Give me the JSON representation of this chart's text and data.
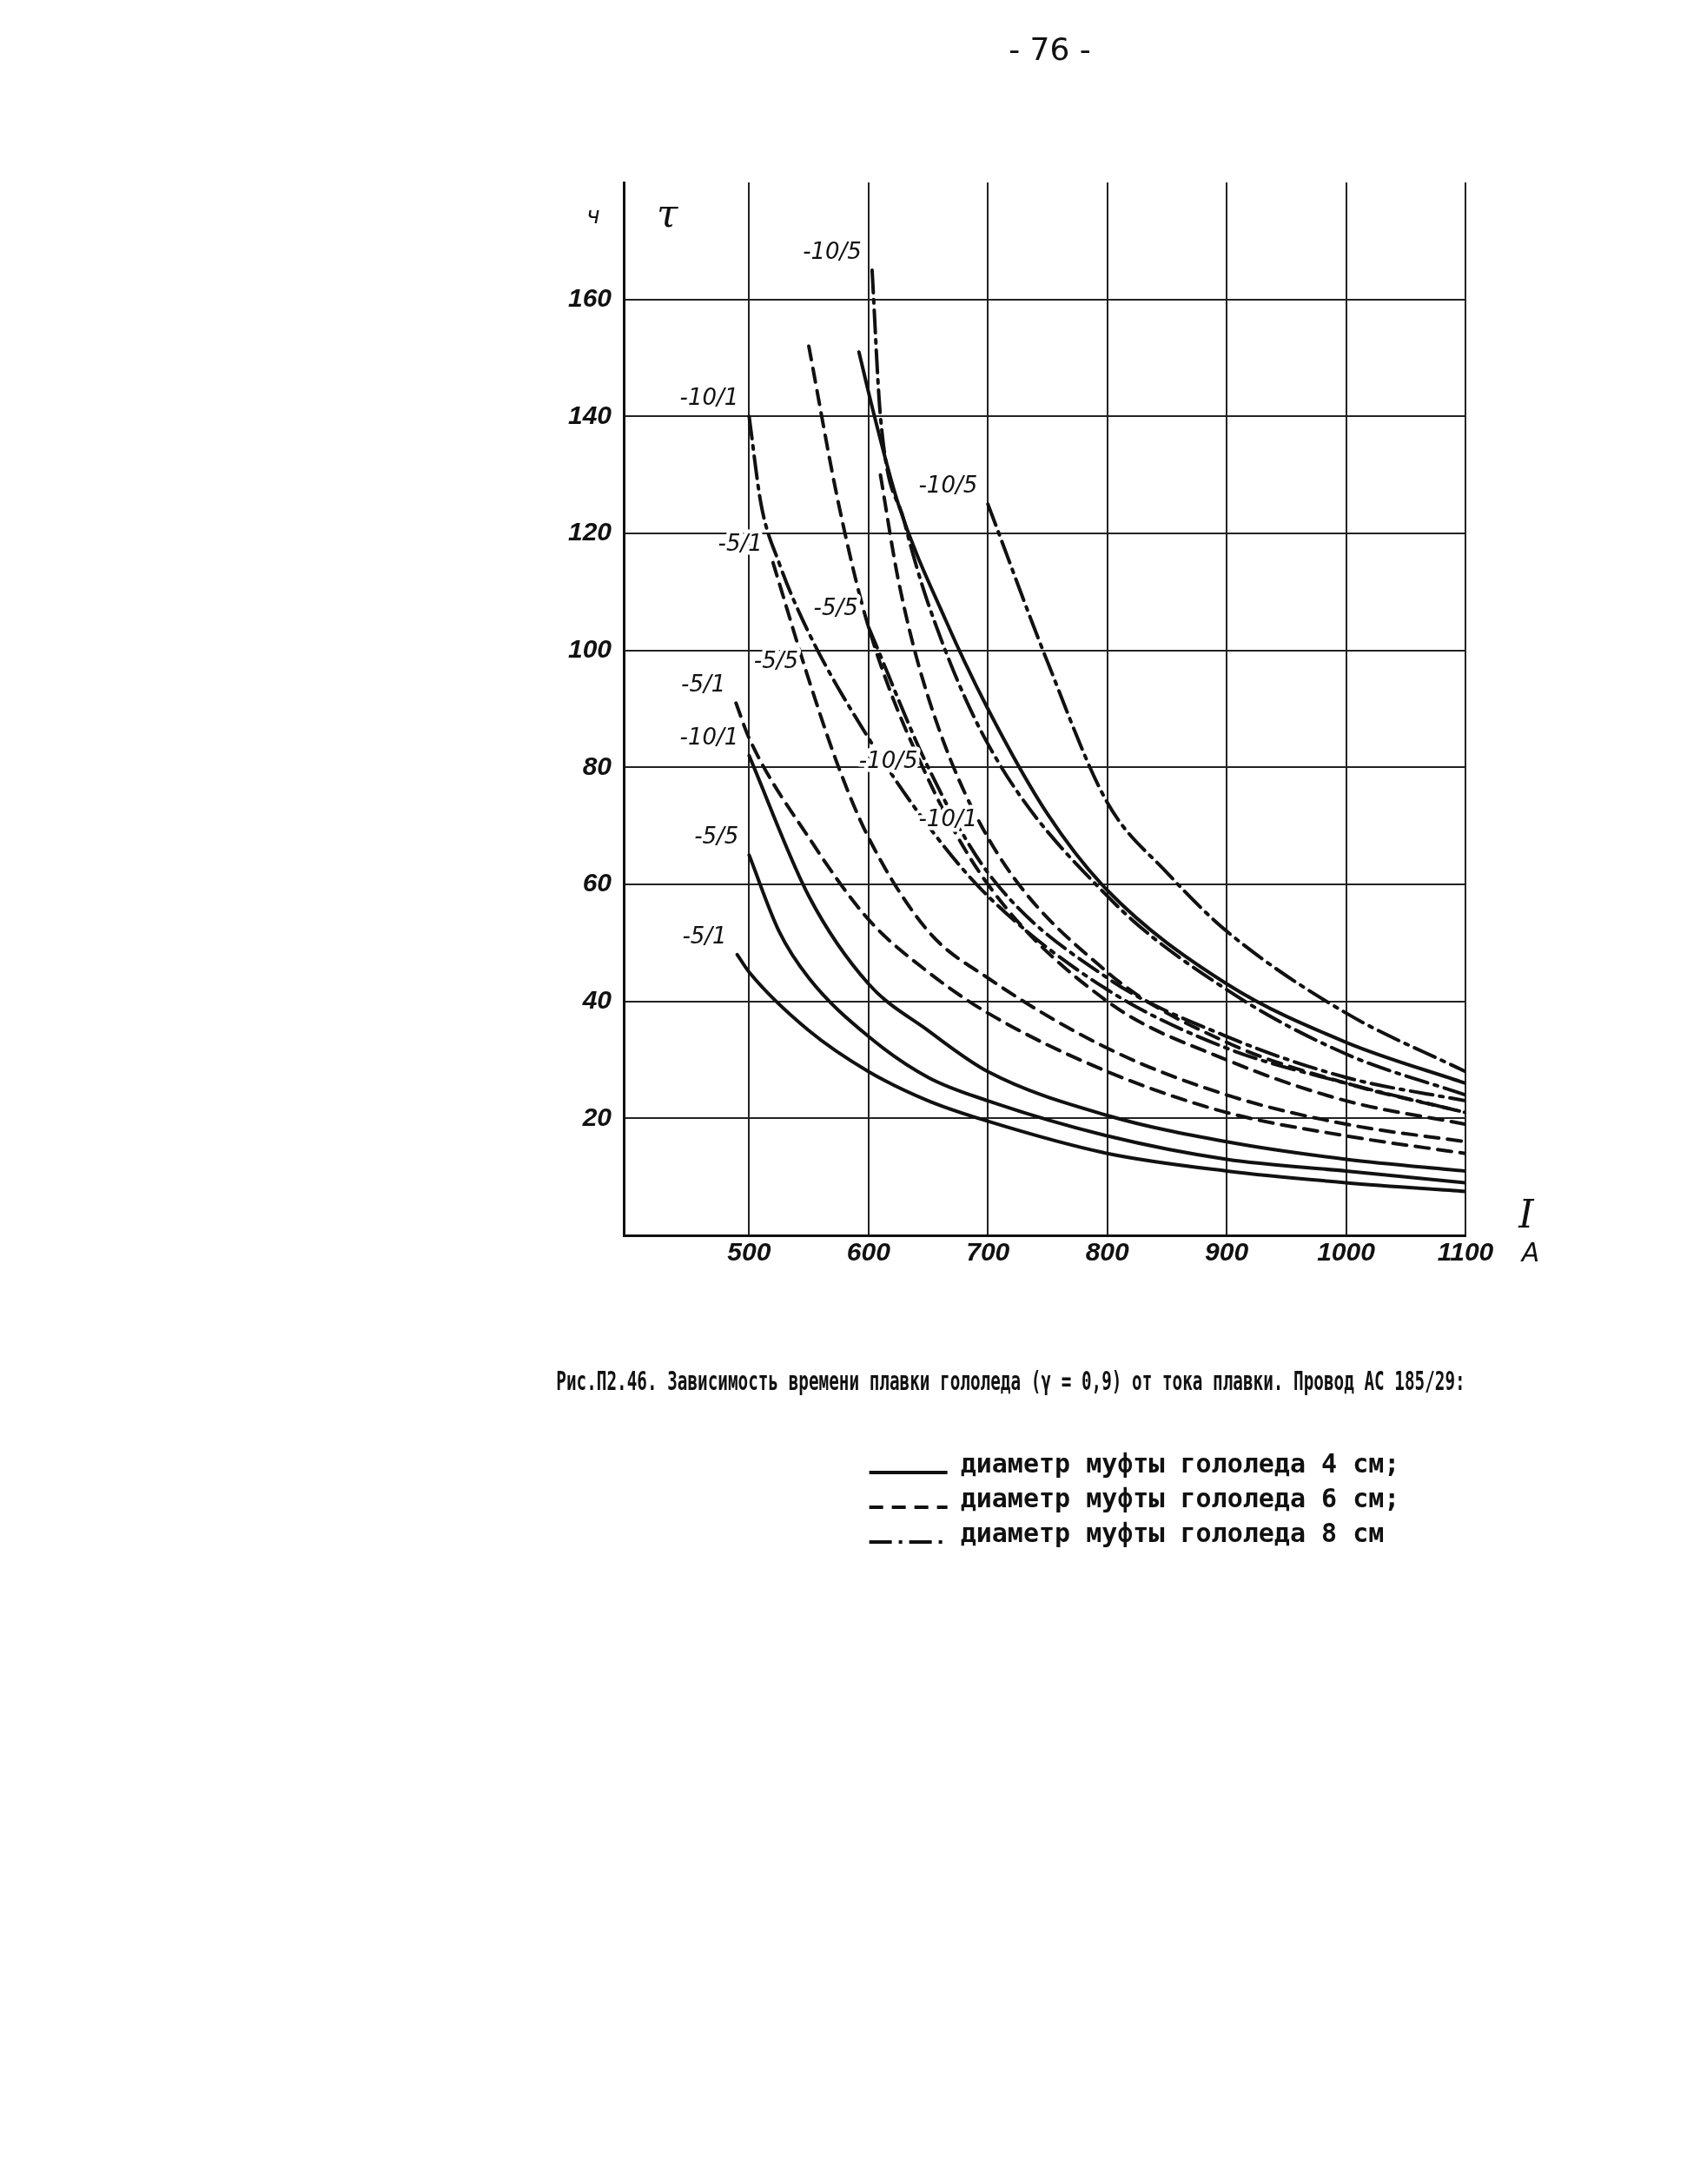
{
  "chart_data": {
    "type": "line",
    "title": "Рис.П2.46. Зависимость времени плавки гололеда (γ = 0,9) от тока плавки. Провод АС 185/29:",
    "xlabel": "I",
    "ylabel": "τ",
    "xlim": [
      395,
      1100
    ],
    "ylim": [
      0,
      180
    ],
    "xticks": [
      500,
      600,
      700,
      800,
      900,
      1000,
      1100
    ],
    "yticks": [
      20,
      40,
      60,
      80,
      100,
      120,
      140,
      160
    ],
    "grid": true,
    "legend": "bottom",
    "marker": "none",
    "series": [
      {
        "name": "диаметр муфты гололеда 4 см;",
        "color": "#111111",
        "line_style": "solid",
        "x": [
          490,
          500,
          550,
          600,
          650,
          700,
          800,
          900,
          1000,
          1100
        ],
        "values": [
          48,
          45,
          35,
          28,
          23,
          19.5,
          14,
          11,
          9,
          7.5
        ]
      },
      {
        "color": "#111111",
        "line_style": "solid",
        "x": [
          500,
          525,
          550,
          600,
          650,
          700,
          800,
          900,
          1000,
          1100
        ],
        "values": [
          65,
          52,
          44,
          34,
          27,
          23,
          17,
          13,
          11,
          9
        ]
      },
      {
        "color": "#111111",
        "line_style": "solid",
        "x": [
          500,
          550,
          600,
          650,
          700,
          800,
          900,
          1000,
          1100
        ],
        "values": [
          82,
          58,
          43,
          35,
          28,
          20.5,
          16,
          13,
          11
        ]
      },
      {
        "color": "#111111",
        "line_style": "solid",
        "x": [
          592,
          605,
          625,
          665,
          700,
          750,
          800,
          900,
          1000,
          1100
        ],
        "values": [
          151,
          140,
          125,
          105,
          90,
          72,
          59,
          43,
          33,
          26
        ]
      },
      {
        "name": "диаметр муфты гололеда 6 см;",
        "color": "#111111",
        "line_style": "dashed",
        "x": [
          489,
          500,
          550,
          600,
          650,
          700,
          800,
          900,
          1000,
          1100
        ],
        "values": [
          91,
          85,
          68,
          54,
          45,
          38,
          28,
          21,
          17,
          14
        ]
      },
      {
        "color": "#111111",
        "line_style": "dashed",
        "x": [
          520,
          550,
          575,
          600,
          650,
          700,
          800,
          900,
          1000,
          1100
        ],
        "values": [
          115,
          95,
          80,
          68,
          52,
          44,
          32,
          24,
          19,
          16
        ]
      },
      {
        "color": "#111111",
        "line_style": "dashed",
        "x": [
          550,
          575,
          600,
          650,
          700,
          800,
          900,
          1000,
          1100
        ],
        "values": [
          152,
          125,
          104,
          78,
          60,
          40,
          30,
          23,
          19
        ]
      },
      {
        "color": "#111111",
        "line_style": "dashed",
        "x": [
          610,
          625,
          650,
          700,
          800,
          900,
          1000,
          1100
        ],
        "values": [
          130,
          112,
          92,
          68,
          45,
          33,
          26,
          21
        ]
      },
      {
        "name": "диаметр муфты гололеда 8 см",
        "color": "#111111",
        "line_style": "dashdot",
        "x": [
          500,
          510,
          525,
          550,
          600,
          650,
          700,
          800,
          900,
          1000,
          1100
        ],
        "values": [
          140,
          125,
          115,
          103,
          85,
          70,
          58,
          42,
          32,
          26,
          21
        ]
      },
      {
        "color": "#111111",
        "line_style": "dashdot",
        "x": [
          600,
          650,
          700,
          800,
          900,
          1000,
          1100
        ],
        "values": [
          104,
          80,
          62,
          44,
          34,
          27,
          23
        ]
      },
      {
        "color": "#111111",
        "line_style": "dashdot",
        "x": [
          603,
          610,
          630,
          650,
          700,
          800,
          900,
          1000,
          1100
        ],
        "values": [
          165,
          140,
          122,
          108,
          84,
          58,
          42,
          31,
          24
        ]
      },
      {
        "color": "#111111",
        "line_style": "dashdot",
        "x": [
          700,
          750,
          800,
          850,
          900,
          1000,
          1100
        ],
        "values": [
          125,
          98,
          74,
          62,
          52,
          38,
          28
        ]
      }
    ],
    "annotations": [
      "- 76 -",
      "ч",
      "А",
      {
        "text": "-10/5",
        "x": 603,
        "y": 165
      },
      {
        "text": "-10/1",
        "x": 500,
        "y": 140
      },
      {
        "text": "-10/5",
        "x": 700,
        "y": 125
      },
      {
        "text": "-5/1",
        "x": 520,
        "y": 115
      },
      {
        "text": "-5/5",
        "x": 600,
        "y": 104
      },
      {
        "text": "-5/1",
        "x": 489,
        "y": 91
      },
      {
        "text": "-10/1",
        "x": 500,
        "y": 82
      },
      {
        "text": "-5/5",
        "x": 550,
        "y": 95
      },
      {
        "text": "-5/5",
        "x": 500,
        "y": 65
      },
      {
        "text": "-10/5",
        "x": 650,
        "y": 78
      },
      {
        "text": "-10/1",
        "x": 700,
        "y": 68
      },
      {
        "text": "-5/1",
        "x": 490,
        "y": 48
      }
    ]
  }
}
